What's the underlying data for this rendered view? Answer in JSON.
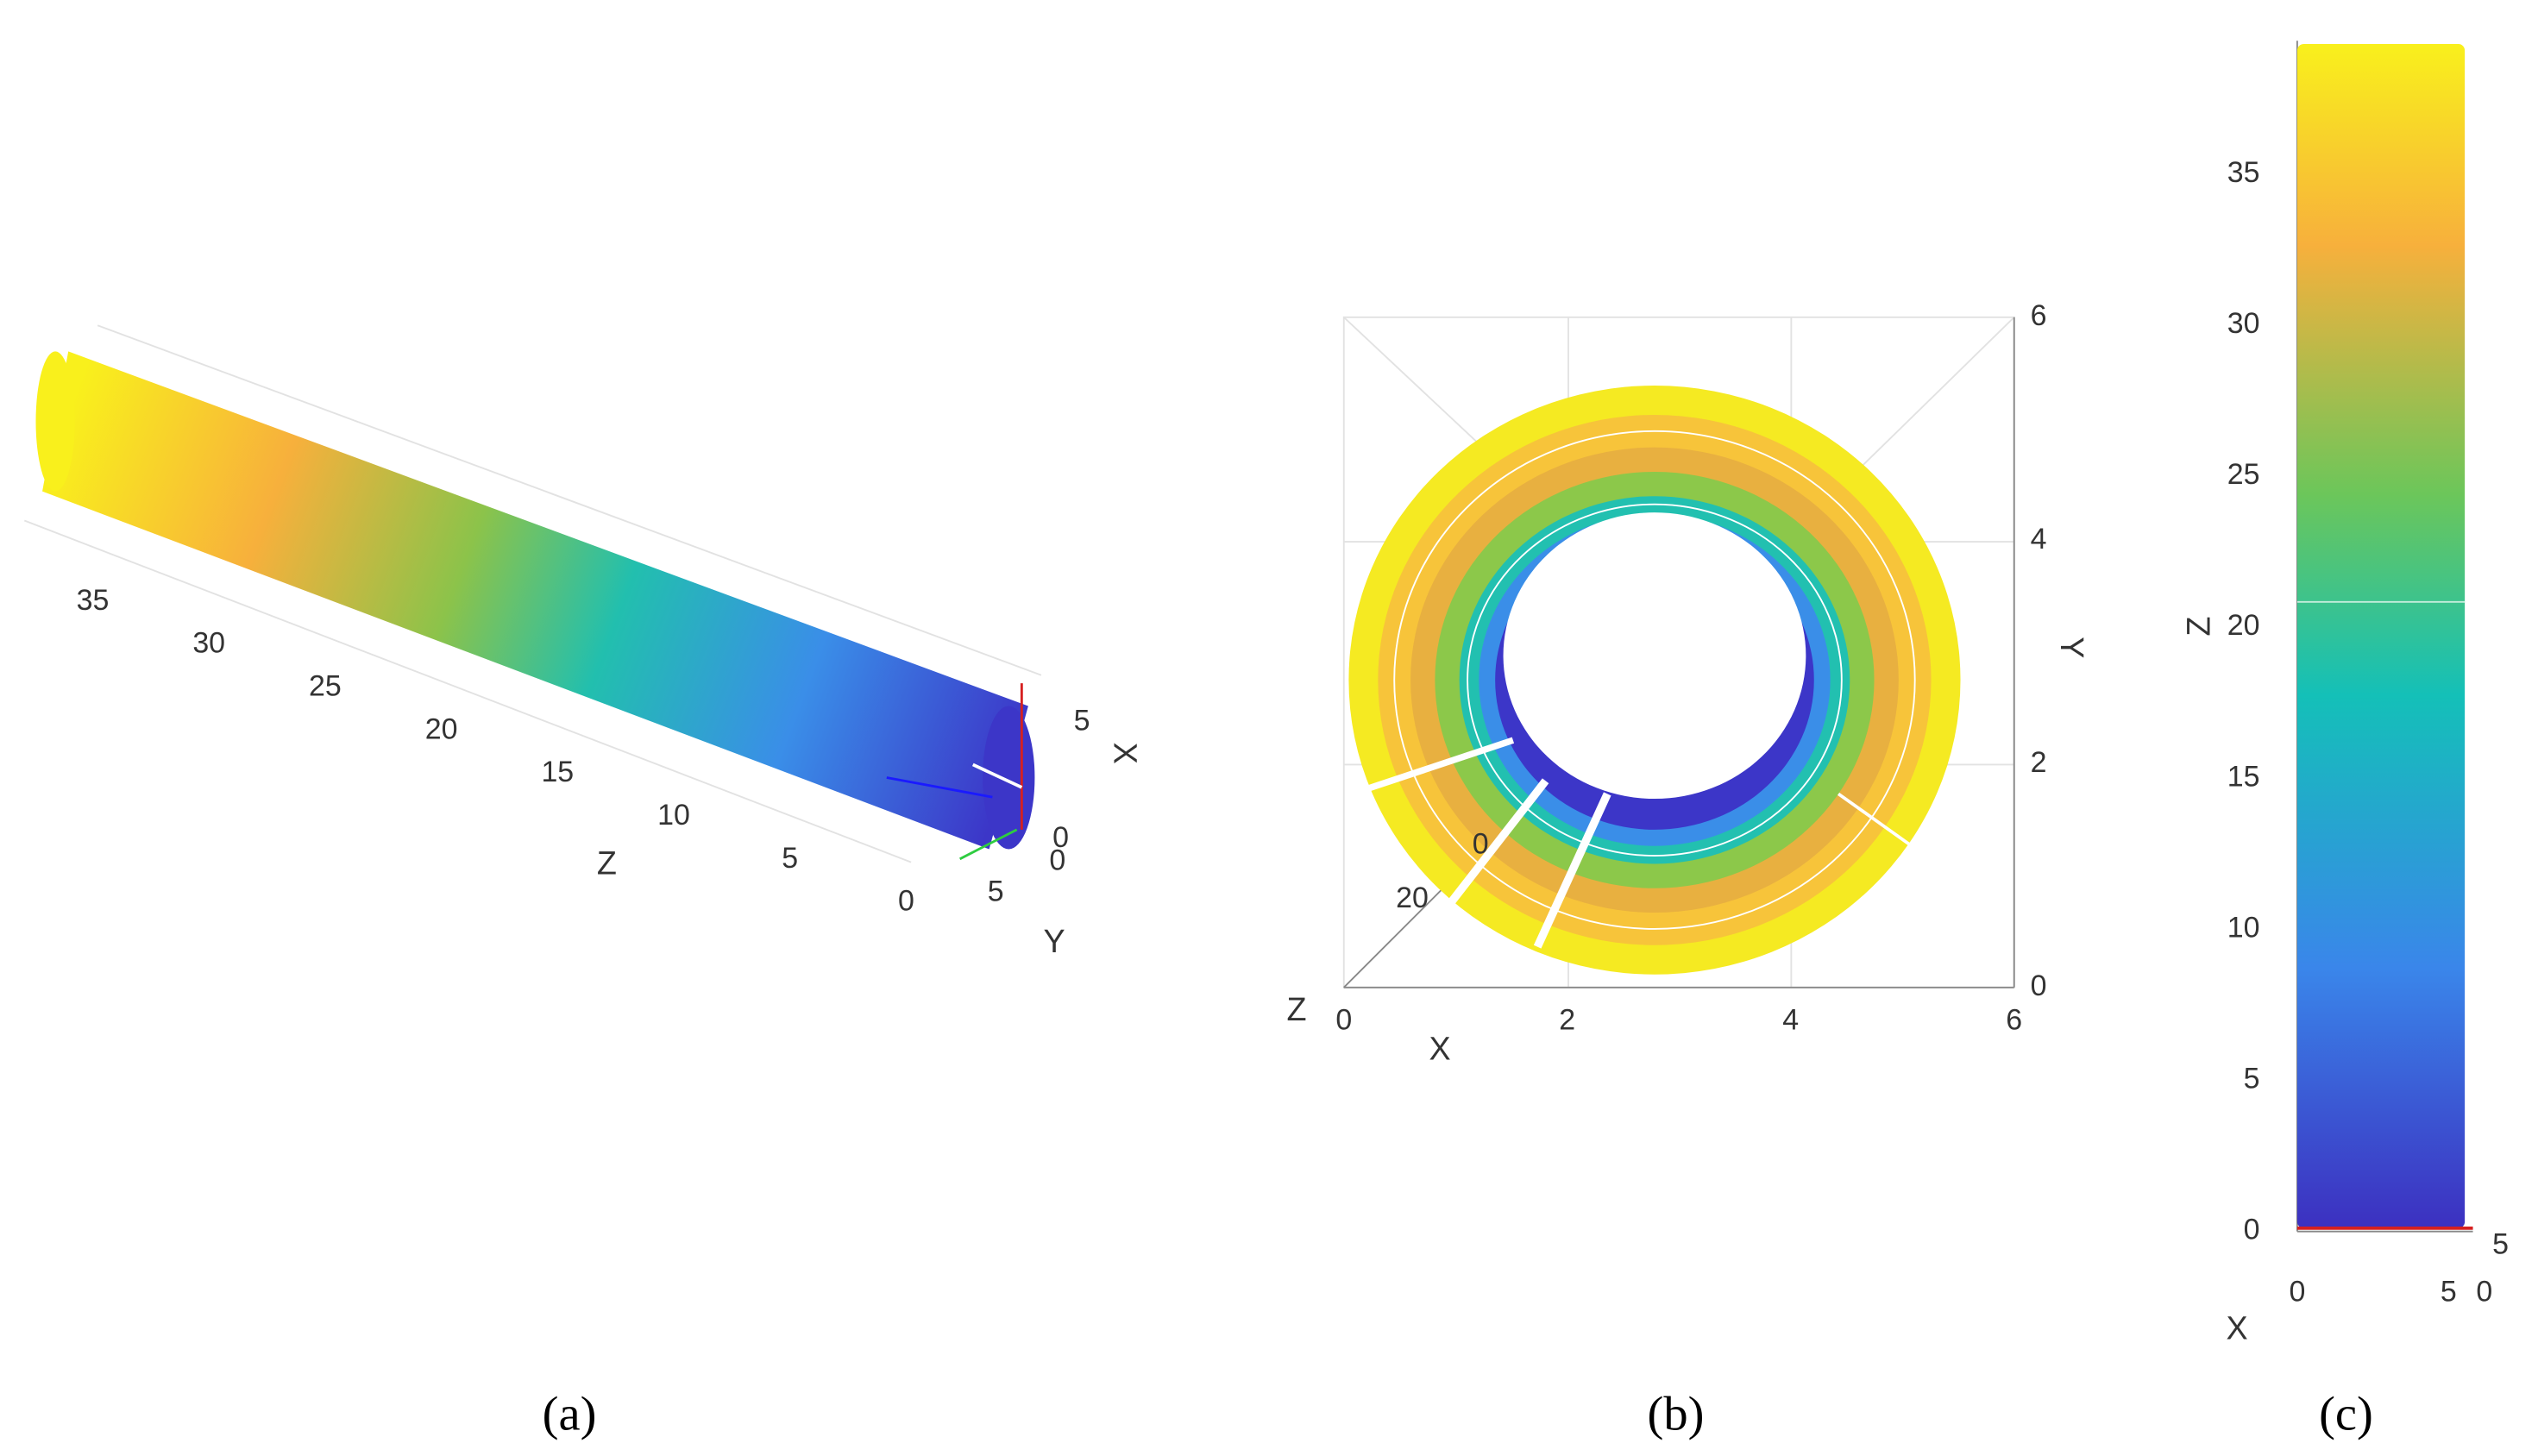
{
  "chart_data": [
    {
      "type": "scatter3d",
      "caption": "(a)",
      "xlabel": "X",
      "ylabel": "Y",
      "zlabel": "Z",
      "xticks": [
        0,
        5
      ],
      "yticks": [
        0,
        5
      ],
      "zticks": [
        0,
        5,
        10,
        15,
        20,
        25,
        30,
        35
      ]
    },
    {
      "type": "scatter3d",
      "caption": "(b)",
      "xlabel": "X",
      "ylabel": "Y",
      "zlabel": "Z",
      "xticks": [
        0,
        2,
        4,
        6
      ],
      "yticks": [
        0,
        2,
        4,
        6
      ],
      "zticks": [
        0,
        20
      ]
    },
    {
      "type": "scatter3d",
      "caption": "(c)",
      "xlabel": "X",
      "zlabel": "Z",
      "xticks": [
        0,
        5
      ],
      "yticks": [
        0,
        5
      ],
      "zticks": [
        0,
        5,
        10,
        15,
        20,
        25,
        30,
        35
      ]
    }
  ]
}
